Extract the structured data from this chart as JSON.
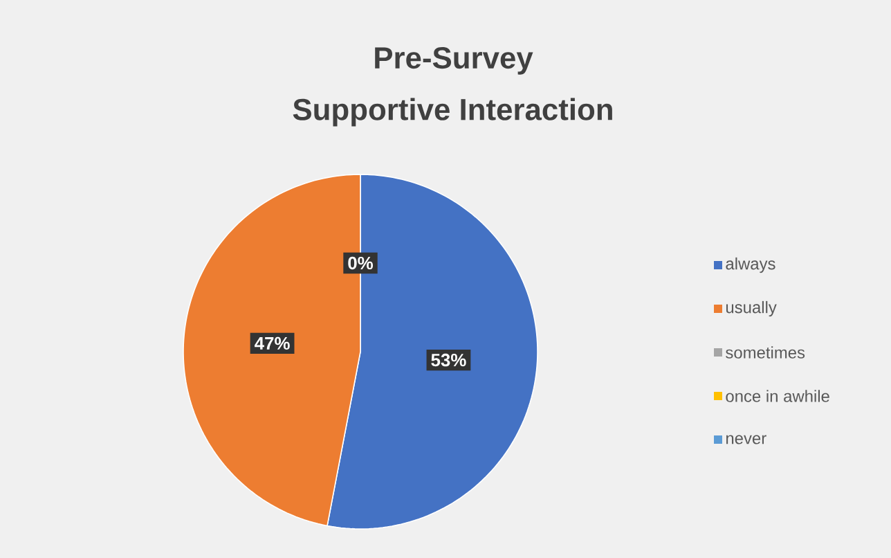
{
  "chart_data": {
    "type": "pie",
    "title": "Pre-Survey",
    "subtitle": "Supportive Interaction",
    "categories": [
      "always",
      "usually",
      "sometimes",
      "once in awhile",
      "never"
    ],
    "values": [
      53,
      47,
      0,
      0,
      0
    ],
    "colors": [
      "#4472c4",
      "#ed7d31",
      "#a5a5a5",
      "#ffc000",
      "#5b9bd5"
    ],
    "value_labels": [
      "53%",
      "47%",
      "0%",
      null,
      null
    ],
    "legend": "right"
  }
}
